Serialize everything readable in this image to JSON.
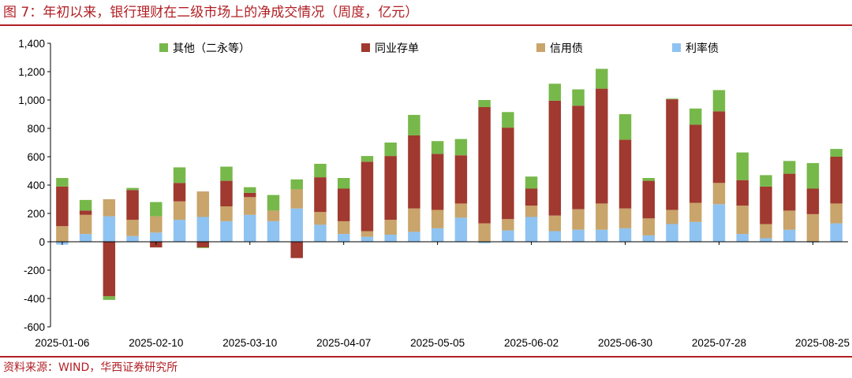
{
  "figure": {
    "title": "图 7：年初以来，银行理财在二级市场上的净成交情况（周度，亿元）",
    "source": "资料来源：WIND，华西证券研究所"
  },
  "colors": {
    "accent": "#b11f24",
    "other": "#77b84a",
    "ncd": "#a0392f",
    "credit": "#c9a46b",
    "rate": "#8fc3f1"
  },
  "chart_data": {
    "type": "bar",
    "stacked": true,
    "ylim": [
      -600,
      1400
    ],
    "yticks": [
      1400,
      1200,
      1000,
      800,
      600,
      400,
      200,
      0,
      -200,
      -400,
      -600
    ],
    "ytick_labels": [
      "1,400",
      "1,200",
      "1,000",
      "800",
      "600",
      "400",
      "200",
      "0",
      "-200",
      "-400",
      "-600"
    ],
    "xtick_labels": [
      "2025-01-06",
      "2025-02-10",
      "2025-03-10",
      "2025-04-07",
      "2025-05-05",
      "2025-06-02",
      "2025-06-30",
      "2025-07-28",
      "2025-08-25"
    ],
    "xtick_indices": [
      0,
      4,
      8,
      12,
      16,
      20,
      24,
      28,
      32
    ],
    "grid": false,
    "legend_position": "top",
    "series": [
      {
        "name": "其他（二永等）",
        "values": [
          60,
          75,
          -25,
          15,
          100,
          110,
          -5,
          100,
          40,
          110,
          70,
          95,
          75,
          40,
          95,
          145,
          90,
          115,
          50,
          110,
          85,
          120,
          115,
          140,
          180,
          20,
          5,
          115,
          150,
          195,
          80,
          90,
          180,
          55
        ]
      },
      {
        "name": "同业存单",
        "values": [
          280,
          30,
          -385,
          210,
          -40,
          130,
          -40,
          180,
          30,
          0,
          -115,
          245,
          230,
          490,
          450,
          515,
          395,
          340,
          820,
          645,
          120,
          810,
          730,
          810,
          485,
          265,
          780,
          550,
          505,
          180,
          265,
          260,
          180,
          330
        ]
      },
      {
        "name": "信用债",
        "values": [
          110,
          135,
          120,
          115,
          115,
          130,
          180,
          105,
          125,
          75,
          135,
          90,
          90,
          40,
          105,
          165,
          130,
          100,
          130,
          80,
          80,
          110,
          145,
          185,
          140,
          120,
          100,
          135,
          150,
          200,
          100,
          135,
          195,
          140
        ]
      },
      {
        "name": "利率债",
        "values": [
          -20,
          55,
          180,
          40,
          65,
          155,
          175,
          145,
          190,
          145,
          235,
          120,
          55,
          35,
          50,
          70,
          95,
          170,
          -10,
          80,
          175,
          75,
          85,
          85,
          95,
          45,
          125,
          140,
          265,
          55,
          25,
          85,
          -5,
          130
        ]
      }
    ]
  }
}
